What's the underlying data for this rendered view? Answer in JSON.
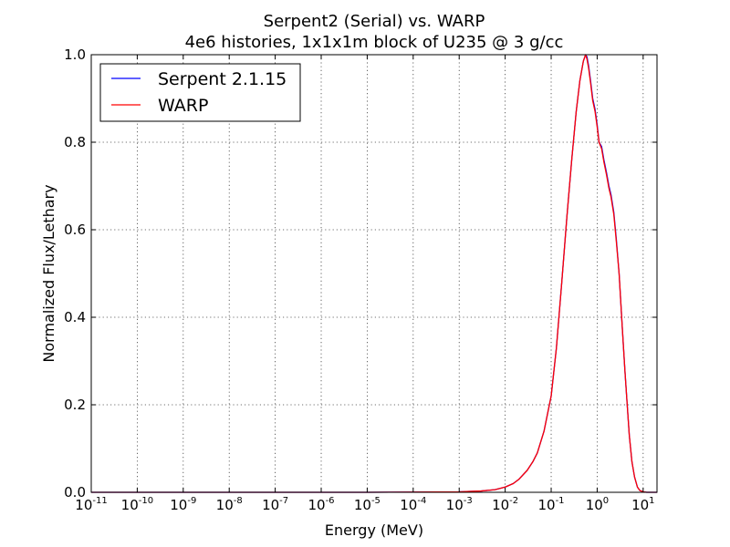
{
  "chart_data": {
    "type": "line",
    "title": [
      "Serpent2 (Serial) vs. WARP",
      "4e6 histories, 1x1x1m block of U235 @ 3 g/cc"
    ],
    "xlabel": "Energy (MeV)",
    "ylabel": "Normalized Flux/Lethary",
    "xscale": "log",
    "xlim": [
      1e-11,
      20
    ],
    "ylim": [
      0,
      1
    ],
    "grid": true,
    "legend_position": "upper-left",
    "x_ticks": [
      {
        "value": 1e-11,
        "base": "10",
        "exp": "-11"
      },
      {
        "value": 1e-10,
        "base": "10",
        "exp": "-10"
      },
      {
        "value": 1e-09,
        "base": "10",
        "exp": "-9"
      },
      {
        "value": 1e-08,
        "base": "10",
        "exp": "-8"
      },
      {
        "value": 1e-07,
        "base": "10",
        "exp": "-7"
      },
      {
        "value": 1e-06,
        "base": "10",
        "exp": "-6"
      },
      {
        "value": 1e-05,
        "base": "10",
        "exp": "-5"
      },
      {
        "value": 0.0001,
        "base": "10",
        "exp": "-4"
      },
      {
        "value": 0.001,
        "base": "10",
        "exp": "-3"
      },
      {
        "value": 0.01,
        "base": "10",
        "exp": "-2"
      },
      {
        "value": 0.1,
        "base": "10",
        "exp": "-1"
      },
      {
        "value": 1,
        "base": "10",
        "exp": "0"
      },
      {
        "value": 10,
        "base": "10",
        "exp": "1"
      }
    ],
    "y_ticks": [
      {
        "value": 0.0,
        "label": "0.0"
      },
      {
        "value": 0.2,
        "label": "0.2"
      },
      {
        "value": 0.4,
        "label": "0.4"
      },
      {
        "value": 0.6,
        "label": "0.6"
      },
      {
        "value": 0.8,
        "label": "0.8"
      },
      {
        "value": 1.0,
        "label": "1.0"
      }
    ],
    "series": [
      {
        "name": "Serpent 2.1.15",
        "color": "#0000ff",
        "x": [
          1e-11,
          1e-05,
          0.001,
          0.003,
          0.006,
          0.01,
          0.015,
          0.02,
          0.03,
          0.04,
          0.05,
          0.07,
          0.1,
          0.13,
          0.17,
          0.22,
          0.28,
          0.35,
          0.42,
          0.5,
          0.56,
          0.6,
          0.65,
          0.72,
          0.8,
          0.9,
          1.0,
          1.1,
          1.25,
          1.4,
          1.6,
          1.8,
          2.0,
          2.3,
          2.6,
          3.0,
          3.5,
          4.0,
          4.5,
          5.0,
          5.7,
          6.5,
          7.5,
          8.5,
          10,
          12,
          14,
          16,
          20
        ],
        "y": [
          0,
          0,
          0.001,
          0.003,
          0.006,
          0.012,
          0.02,
          0.03,
          0.05,
          0.07,
          0.09,
          0.14,
          0.22,
          0.33,
          0.48,
          0.63,
          0.76,
          0.87,
          0.94,
          0.985,
          1.0,
          0.995,
          0.975,
          0.94,
          0.9,
          0.875,
          0.84,
          0.8,
          0.79,
          0.76,
          0.73,
          0.7,
          0.68,
          0.64,
          0.58,
          0.5,
          0.38,
          0.28,
          0.2,
          0.13,
          0.07,
          0.035,
          0.012,
          0.004,
          0.001,
          0,
          0,
          0,
          0
        ]
      },
      {
        "name": "WARP",
        "color": "#ff0000",
        "x": [
          1e-11,
          1e-05,
          0.001,
          0.003,
          0.006,
          0.01,
          0.015,
          0.02,
          0.03,
          0.04,
          0.05,
          0.07,
          0.1,
          0.13,
          0.17,
          0.22,
          0.28,
          0.35,
          0.42,
          0.5,
          0.56,
          0.6,
          0.65,
          0.72,
          0.8,
          0.9,
          1.0,
          1.1,
          1.25,
          1.4,
          1.6,
          1.8,
          2.0,
          2.3,
          2.6,
          3.0,
          3.5,
          4.0,
          4.5,
          5.0,
          5.7,
          6.5,
          7.5,
          8.5,
          10,
          12,
          14,
          16,
          20
        ],
        "y": [
          0,
          0,
          0.001,
          0.003,
          0.006,
          0.012,
          0.02,
          0.03,
          0.05,
          0.07,
          0.09,
          0.14,
          0.22,
          0.33,
          0.48,
          0.63,
          0.76,
          0.87,
          0.94,
          0.985,
          1.0,
          0.99,
          0.97,
          0.935,
          0.895,
          0.87,
          0.835,
          0.8,
          0.785,
          0.755,
          0.725,
          0.695,
          0.675,
          0.635,
          0.575,
          0.5,
          0.38,
          0.28,
          0.2,
          0.13,
          0.07,
          0.035,
          0.012,
          0.004,
          0.001,
          0,
          0,
          0,
          0
        ]
      }
    ]
  }
}
